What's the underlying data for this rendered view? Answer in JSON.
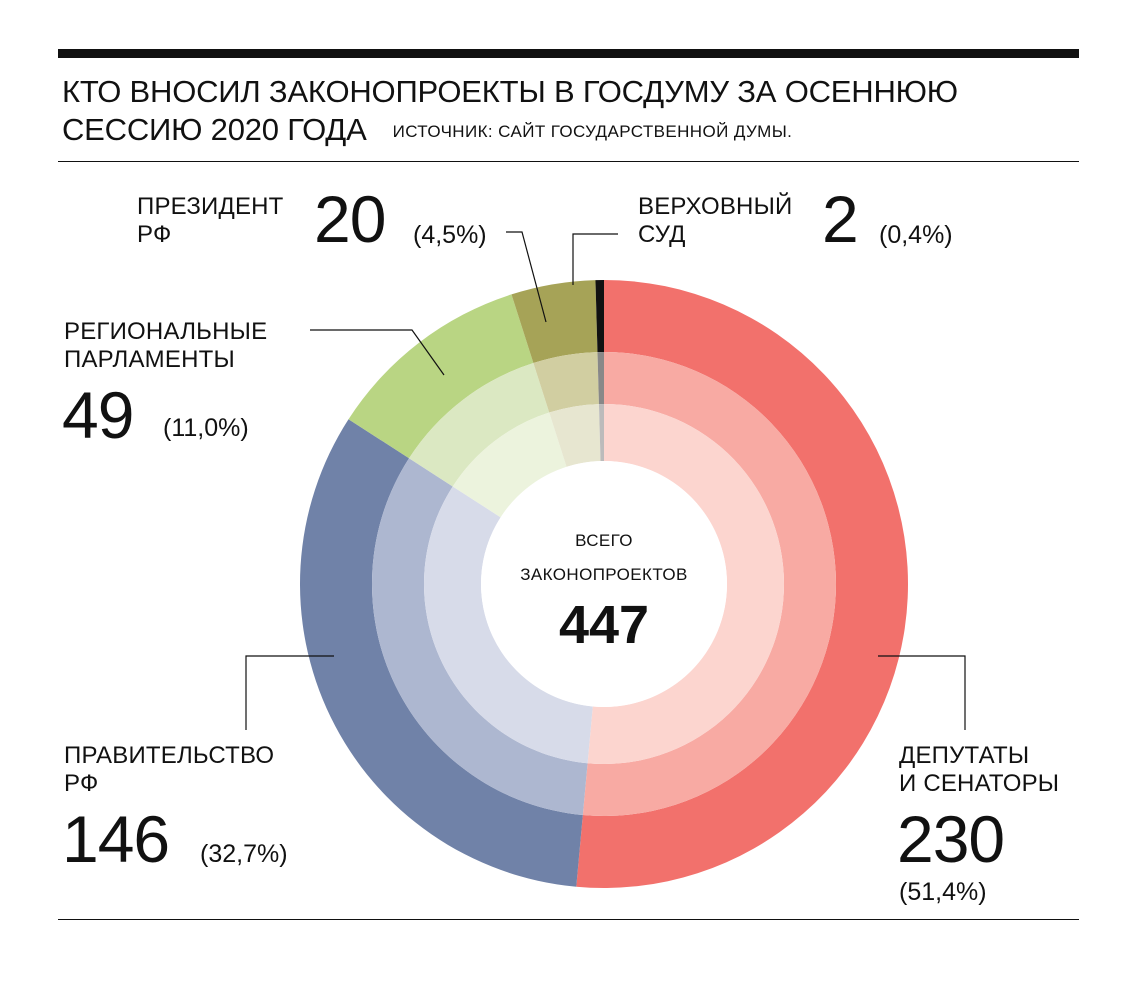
{
  "header": {
    "title_line1": "КТО ВНОСИЛ ЗАКОНОПРОЕКТЫ В ГОСДУМУ ЗА ОСЕННЮЮ",
    "title_line2": "СЕССИЮ 2020 ГОДА",
    "source": "ИСТОЧНИК: САЙТ ГОСУДАРСТВЕННОЙ ДУМЫ."
  },
  "center": {
    "line1": "ВСЕГО",
    "line2": "ЗАКОНОПРОЕКТОВ",
    "total": "447"
  },
  "labels": {
    "deputies": {
      "line1": "ДЕПУТАТЫ",
      "line2": "И СЕНАТОРЫ",
      "value": "230",
      "pct": "(51,4%)"
    },
    "government": {
      "line1": "ПРАВИТЕЛЬСТВО",
      "line2": "РФ",
      "value": "146",
      "pct": "(32,7%)"
    },
    "regional": {
      "line1": "РЕГИОНАЛЬНЫЕ",
      "line2": "ПАРЛАМЕНТЫ",
      "value": "49",
      "pct": "(11,0%)"
    },
    "president": {
      "line1": "ПРЕЗИДЕНТ",
      "line2": "РФ",
      "value": "20",
      "pct": "(4,5%)"
    },
    "court": {
      "line1": "ВЕРХОВНЫЙ",
      "line2": "СУД",
      "value": "2",
      "pct": "(0,4%)"
    }
  },
  "chart_data": {
    "type": "pie",
    "total": 447,
    "categories": [
      "ДЕПУТАТЫ И СЕНАТОРЫ",
      "ПРАВИТЕЛЬСТВО РФ",
      "РЕГИОНАЛЬНЫЕ ПАРЛАМЕНТЫ",
      "ПРЕЗИДЕНТ РФ",
      "ВЕРХОВНЫЙ СУД"
    ],
    "values": [
      230,
      146,
      49,
      20,
      2
    ],
    "percent": [
      51.4,
      32.7,
      11.0,
      4.5,
      0.4
    ],
    "order": "clockwise from top",
    "ring_colors": [
      [
        "#f2716c",
        "#f8aaa3",
        "#fcd5cf"
      ],
      [
        "#7082a8",
        "#adb7d0",
        "#d7dbe9"
      ],
      [
        "#b9d583",
        "#dbe8c2",
        "#ecf3dd"
      ],
      [
        "#a6a357",
        "#d1cea1",
        "#e7e6d0"
      ],
      [
        "#111111",
        "#888888",
        "#bbbbbb"
      ]
    ]
  }
}
